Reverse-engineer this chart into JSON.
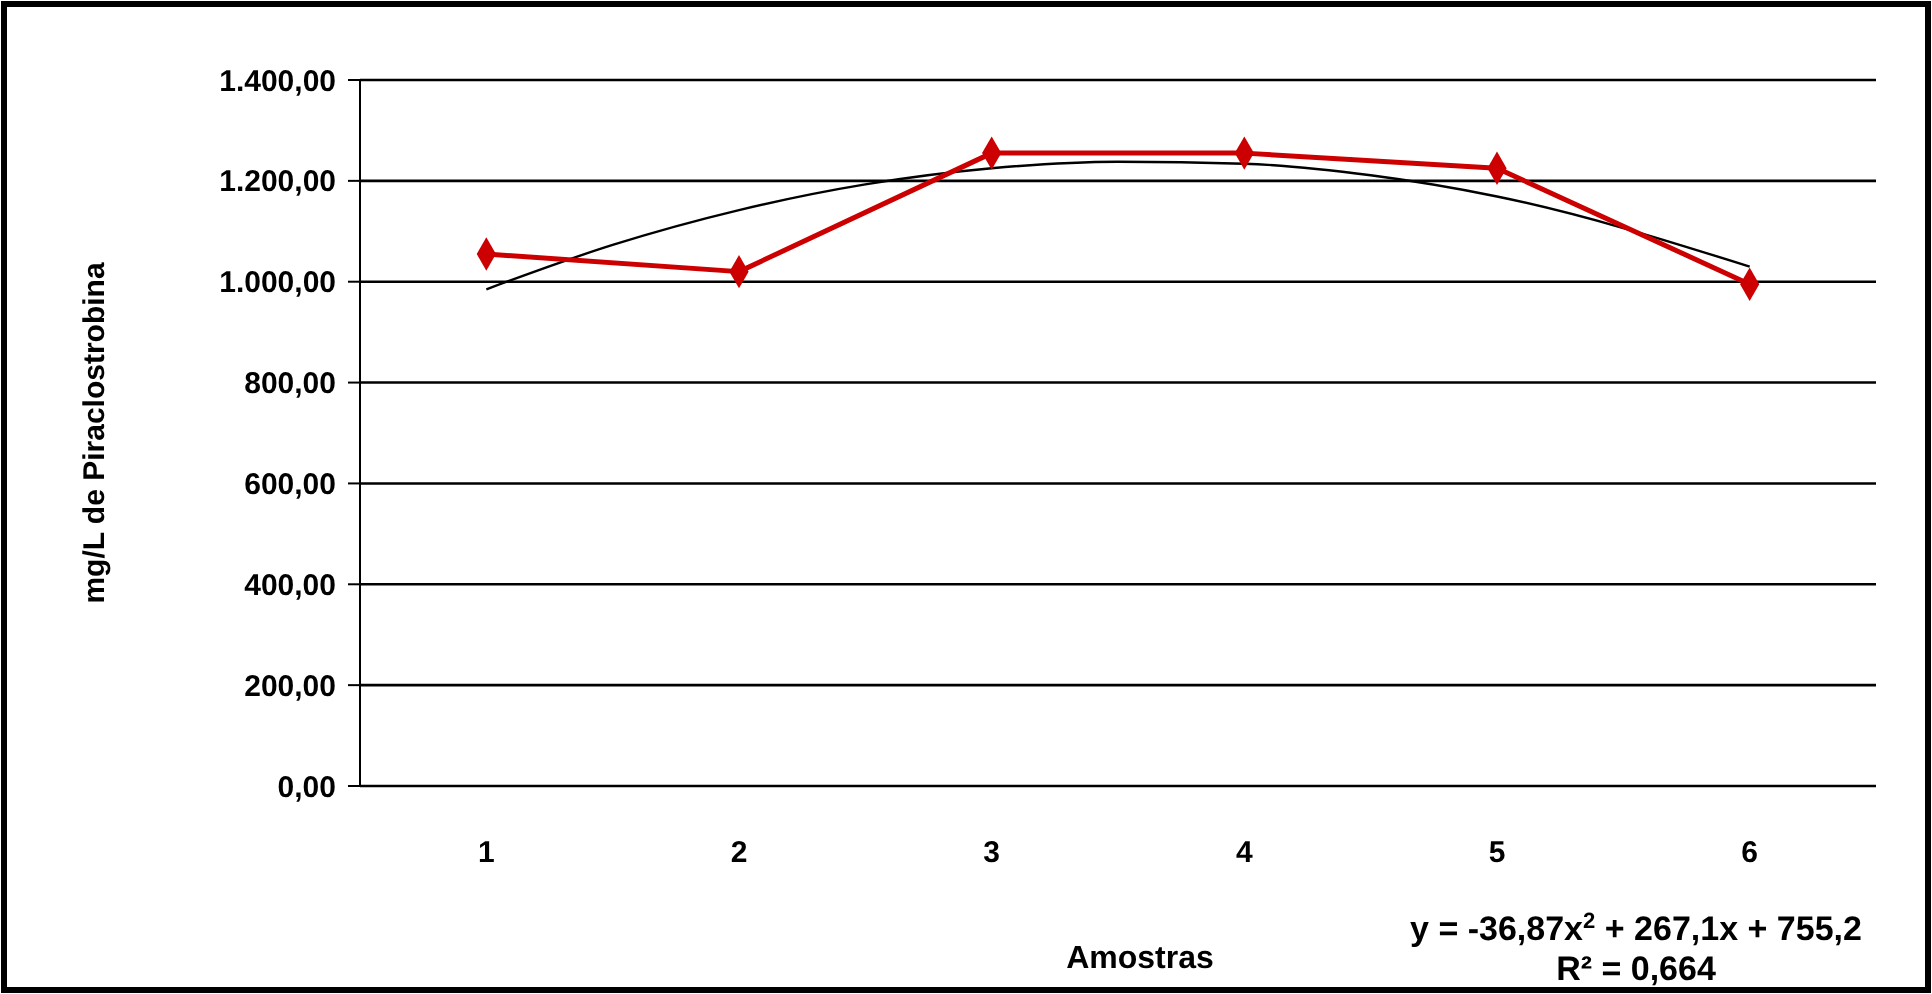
{
  "chart_data": {
    "type": "line",
    "xlabel": "Amostras",
    "ylabel": "mg/L de Piraclostrobina",
    "x": [
      1,
      2,
      3,
      4,
      5,
      6
    ],
    "xlim": [
      0.5,
      6.5
    ],
    "xticks": [
      1,
      2,
      3,
      4,
      5,
      6
    ],
    "ylim": [
      0,
      1400
    ],
    "yticks": [
      {
        "value": 0,
        "label": "0,00"
      },
      {
        "value": 200,
        "label": "200,00"
      },
      {
        "value": 400,
        "label": "400,00"
      },
      {
        "value": 600,
        "label": "600,00"
      },
      {
        "value": 800,
        "label": "800,00"
      },
      {
        "value": 1000,
        "label": "1.000,00"
      },
      {
        "value": 1200,
        "label": "1.200,00"
      },
      {
        "value": 1400,
        "label": "1.400,00"
      }
    ],
    "grid": "y",
    "marker": "diamond",
    "line_style": "solid",
    "series": [
      {
        "color": "#cc0000",
        "values": [
          1055,
          1020,
          1255,
          1255,
          1225,
          995
        ]
      },
      {
        "type": "line",
        "color": "#000000",
        "marker": "none",
        "x": [
          1,
          1.5,
          2,
          2.5,
          3,
          3.5,
          4,
          4.5,
          5,
          6
        ],
        "values": [
          985,
          1073,
          1142,
          1193,
          1225,
          1238,
          1234,
          1211,
          1169,
          1030
        ]
      }
    ],
    "annotations": [
      "y = -36,87x$^{2}$ + 267,1x + 755,2",
      "R² = 0,664"
    ]
  }
}
